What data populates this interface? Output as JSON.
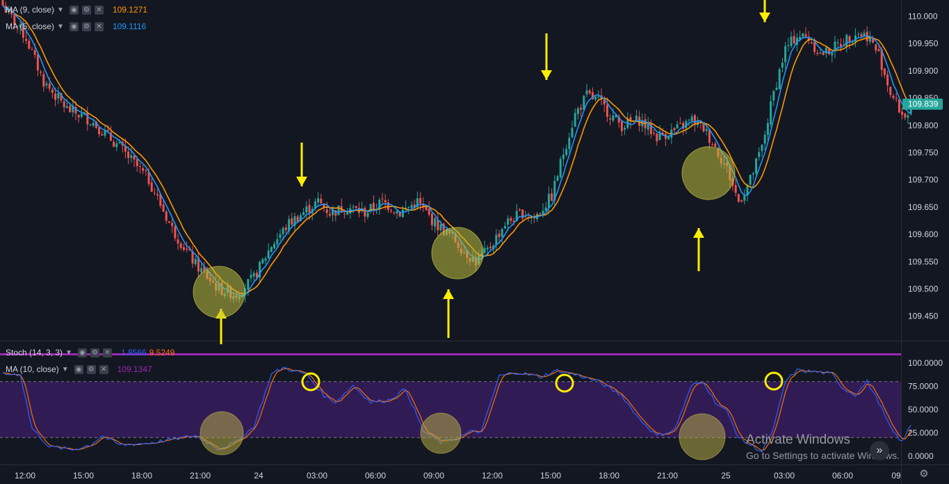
{
  "legends": {
    "ma9": {
      "name": "MA (9, close)",
      "value": "109.1271",
      "color": "#ff9800"
    },
    "ma5": {
      "name": "MA (5, close)",
      "value": "109.1116",
      "color": "#2196f3"
    },
    "stoch": {
      "name": "Stoch (14, 3, 3)",
      "k": "1.8566",
      "d": "9.5249",
      "k_color": "#2962ff",
      "d_color": "#ff6d00"
    },
    "ma10": {
      "name": "MA (10, close)",
      "value": "109.1347",
      "color": "#9c27b0"
    }
  },
  "icons": {
    "eye": "eye-icon",
    "settings": "settings-icon",
    "close": "close-icon",
    "chevron": "chevron-down-icon",
    "gear": "gear-icon",
    "scroll": "scroll-right-icon"
  },
  "watermark": {
    "title": "Activate Windows",
    "subtitle": "Go to Settings to activate Windows."
  },
  "nav_button": "»",
  "colors": {
    "bg": "#131722",
    "up": "#26a69a",
    "down": "#ef5350",
    "price_tag": "#26a69a",
    "purple": "#9c27b0",
    "band": "#311b54",
    "annotation": "#ffee00"
  },
  "chart_data": [
    {
      "type": "candlestick",
      "title": "",
      "current_price": "109.839",
      "ylim": [
        109.405,
        110.03
      ],
      "y_ticks": [
        "110.000",
        "109.950",
        "109.900",
        "109.850",
        "109.800",
        "109.750",
        "109.700",
        "109.650",
        "109.600",
        "109.550",
        "109.500",
        "109.450"
      ],
      "x_ticks": [
        "12:00",
        "15:00",
        "18:00",
        "21:00",
        "24",
        "03:00",
        "06:00",
        "09:00",
        "12:00",
        "15:00",
        "18:00",
        "21:00",
        "25",
        "03:00",
        "06:00",
        "09"
      ],
      "anchors": [
        [
          0,
          110.02
        ],
        [
          8,
          109.96
        ],
        [
          14,
          109.88
        ],
        [
          22,
          109.83
        ],
        [
          30,
          109.81
        ],
        [
          40,
          109.76
        ],
        [
          50,
          109.7
        ],
        [
          58,
          109.61
        ],
        [
          66,
          109.545
        ],
        [
          74,
          109.5
        ],
        [
          80,
          109.49
        ],
        [
          86,
          109.52
        ],
        [
          92,
          109.58
        ],
        [
          98,
          109.62
        ],
        [
          104,
          109.645
        ],
        [
          108,
          109.66
        ],
        [
          112,
          109.64
        ],
        [
          118,
          109.65
        ],
        [
          124,
          109.64
        ],
        [
          130,
          109.66
        ],
        [
          136,
          109.64
        ],
        [
          142,
          109.66
        ],
        [
          148,
          109.62
        ],
        [
          154,
          109.595
        ],
        [
          158,
          109.57
        ],
        [
          162,
          109.55
        ],
        [
          166,
          109.57
        ],
        [
          172,
          109.62
        ],
        [
          178,
          109.64
        ],
        [
          182,
          109.63
        ],
        [
          188,
          109.67
        ],
        [
          192,
          109.75
        ],
        [
          196,
          109.82
        ],
        [
          200,
          109.855
        ],
        [
          204,
          109.845
        ],
        [
          208,
          109.82
        ],
        [
          212,
          109.8
        ],
        [
          218,
          109.81
        ],
        [
          224,
          109.78
        ],
        [
          230,
          109.79
        ],
        [
          236,
          109.81
        ],
        [
          240,
          109.795
        ],
        [
          244,
          109.76
        ],
        [
          248,
          109.72
        ],
        [
          252,
          109.66
        ],
        [
          256,
          109.7
        ],
        [
          260,
          109.76
        ],
        [
          264,
          109.86
        ],
        [
          268,
          109.94
        ],
        [
          272,
          109.965
        ],
        [
          276,
          109.96
        ],
        [
          280,
          109.93
        ],
        [
          284,
          109.94
        ],
        [
          288,
          109.955
        ],
        [
          292,
          109.97
        ],
        [
          296,
          109.965
        ],
        [
          300,
          109.93
        ],
        [
          304,
          109.86
        ],
        [
          308,
          109.82
        ],
        [
          311,
          109.82
        ]
      ],
      "ma_series": [
        {
          "name": "MA (9, close)",
          "period": 9,
          "color": "#ff9800"
        },
        {
          "name": "MA (5, close)",
          "period": 5,
          "color": "#2196f3"
        }
      ]
    },
    {
      "type": "line",
      "title": "",
      "ylim": [
        0,
        100
      ],
      "y_ticks": [
        "100.0000",
        "75.0000",
        "50.0000",
        "25.0000",
        "0.0000"
      ],
      "bands": [
        20,
        80
      ],
      "k_anchors": [
        [
          0,
          88
        ],
        [
          6,
          88
        ],
        [
          10,
          30
        ],
        [
          16,
          10
        ],
        [
          24,
          7
        ],
        [
          30,
          12
        ],
        [
          34,
          22
        ],
        [
          40,
          12
        ],
        [
          50,
          14
        ],
        [
          58,
          18
        ],
        [
          66,
          22
        ],
        [
          74,
          8
        ],
        [
          80,
          15
        ],
        [
          86,
          32
        ],
        [
          92,
          88
        ],
        [
          96,
          95
        ],
        [
          104,
          88
        ],
        [
          110,
          65
        ],
        [
          114,
          58
        ],
        [
          120,
          76
        ],
        [
          126,
          58
        ],
        [
          132,
          60
        ],
        [
          138,
          72
        ],
        [
          144,
          27
        ],
        [
          150,
          15
        ],
        [
          156,
          20
        ],
        [
          160,
          26
        ],
        [
          164,
          27
        ],
        [
          170,
          86
        ],
        [
          176,
          90
        ],
        [
          184,
          85
        ],
        [
          190,
          92
        ],
        [
          198,
          86
        ],
        [
          204,
          80
        ],
        [
          212,
          65
        ],
        [
          218,
          40
        ],
        [
          224,
          22
        ],
        [
          230,
          28
        ],
        [
          236,
          76
        ],
        [
          240,
          80
        ],
        [
          244,
          58
        ],
        [
          248,
          48
        ],
        [
          252,
          20
        ],
        [
          256,
          12
        ],
        [
          260,
          5
        ],
        [
          264,
          30
        ],
        [
          268,
          80
        ],
        [
          272,
          92
        ],
        [
          280,
          90
        ],
        [
          284,
          88
        ],
        [
          288,
          72
        ],
        [
          292,
          66
        ],
        [
          296,
          80
        ],
        [
          300,
          58
        ],
        [
          304,
          30
        ],
        [
          308,
          15
        ],
        [
          311,
          34
        ]
      ]
    }
  ]
}
